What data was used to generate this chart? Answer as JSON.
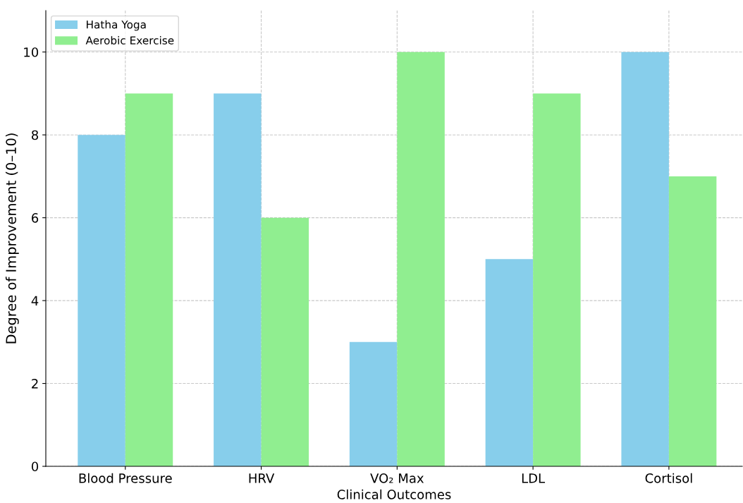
{
  "chart_data": {
    "type": "bar",
    "xlabel": "Clinical Outcomes",
    "ylabel": "Degree of Improvement (0–10)",
    "categories": [
      "Blood Pressure",
      "HRV",
      "VO₂ Max",
      "LDL",
      "Cortisol"
    ],
    "series": [
      {
        "name": "Hatha Yoga",
        "color": "#87ceeb",
        "values": [
          8,
          9,
          3,
          5,
          10
        ]
      },
      {
        "name": "Aerobic Exercise",
        "color": "#90ee90",
        "values": [
          9,
          6,
          10,
          9,
          7
        ]
      }
    ],
    "ylim": [
      0,
      11
    ],
    "yticks": [
      0,
      2,
      4,
      6,
      8,
      10
    ],
    "grid": true,
    "legend": "top left"
  }
}
